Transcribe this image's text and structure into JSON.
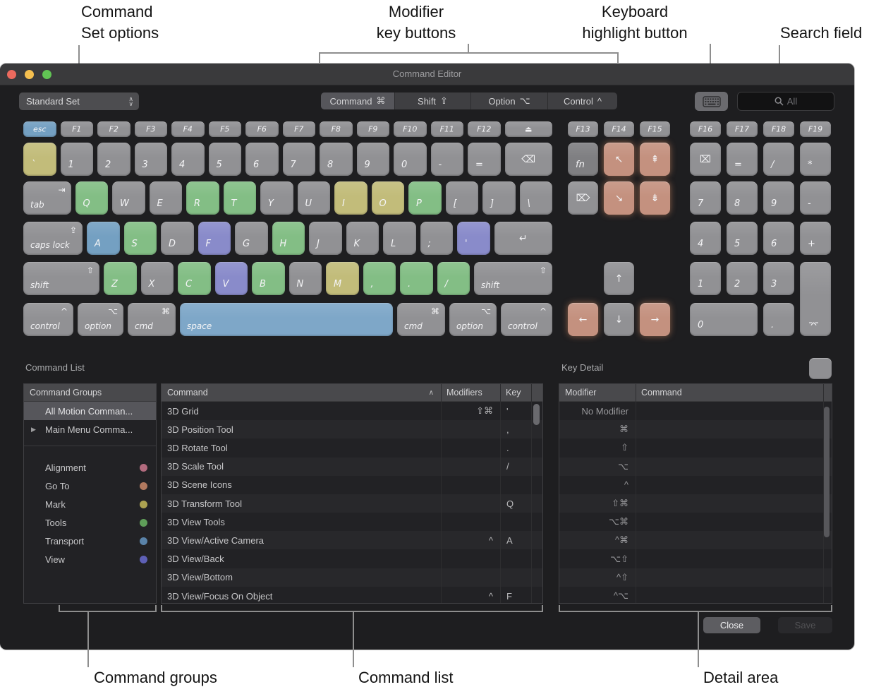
{
  "callouts": {
    "command_set": [
      "Command",
      "Set options"
    ],
    "modifier": [
      "Modifier",
      "key buttons"
    ],
    "keyboard": [
      "Keyboard",
      "highlight button"
    ],
    "search": "Search field",
    "command_groups": "Command groups",
    "command_list": "Command list",
    "detail_area": "Detail area"
  },
  "window": {
    "title": "Command Editor"
  },
  "toolbar": {
    "command_set_value": "Standard Set",
    "modifier_buttons": [
      {
        "label": "Command",
        "symbol": "⌘",
        "selected": true
      },
      {
        "label": "Shift",
        "symbol": "⇧",
        "selected": false
      },
      {
        "label": "Option",
        "symbol": "⌥",
        "selected": false
      },
      {
        "label": "Control",
        "symbol": "^",
        "selected": false
      }
    ],
    "search_placeholder": "All"
  },
  "icons": {
    "popup_chevron_up": "∧",
    "popup_chevron_down": "∨",
    "disclosure": "▶"
  },
  "keyboard": {
    "palette": {
      "g": "#919194",
      "dg": "#7f7f82",
      "b": "#74a0c2",
      "sb": "#7ea7c8",
      "gr": "#83be85",
      "k": "#c2bc7a",
      "p": "#898bca",
      "sa": "#c4917f"
    },
    "symbol_names": {
      "⏏": "eject",
      "⌫": "delete",
      "⌦": "forward-delete",
      "⌧": "clear",
      "↵": "return",
      "⌤": "numpad-enter",
      "↖": "home",
      "⇞": "page-up",
      "↘": "end",
      "⇟": "page-down",
      "↑": "arrow-up",
      "↓": "arrow-down",
      "←": "arrow-left",
      "→": "arrow-right",
      "`": "backtick",
      "=": "equals",
      "/": "slash",
      "*": "asterisk",
      "-": "minus",
      "+": "plus",
      ".": "period",
      ",": "comma",
      ";": "semicolon",
      "'": "quote",
      "[": "left-bracket",
      "]": "right-bracket",
      "\\": "backslash"
    },
    "keys": [
      [
        33,
        82,
        46.5,
        22,
        "b",
        "f",
        "esc"
      ],
      [
        85.5,
        82,
        46.5,
        22,
        "g",
        "f",
        "F1"
      ],
      [
        138,
        82,
        46.5,
        22,
        "g",
        "f",
        "F2"
      ],
      [
        190.5,
        82,
        46.5,
        22,
        "g",
        "f",
        "F3"
      ],
      [
        243,
        82,
        46.5,
        22,
        "g",
        "f",
        "F4"
      ],
      [
        295.5,
        82,
        46.5,
        22,
        "g",
        "f",
        "F5"
      ],
      [
        348,
        82,
        46.5,
        22,
        "g",
        "f",
        "F6"
      ],
      [
        400.5,
        82,
        46.5,
        22,
        "g",
        "f",
        "F7"
      ],
      [
        453,
        82,
        46.5,
        22,
        "g",
        "f",
        "F8"
      ],
      [
        505.5,
        82,
        46.5,
        22,
        "g",
        "f",
        "F9"
      ],
      [
        558,
        82,
        46.5,
        22,
        "g",
        "f",
        "F10"
      ],
      [
        610.5,
        82,
        46.5,
        22,
        "g",
        "f",
        "F11"
      ],
      [
        663,
        82,
        46.5,
        22,
        "g",
        "f",
        "F12"
      ],
      [
        715.5,
        82,
        67.5,
        22,
        "g",
        "f",
        "⏏"
      ],
      [
        805,
        82,
        43,
        22,
        "g",
        "f",
        "F13"
      ],
      [
        856,
        82,
        43,
        22,
        "g",
        "f",
        "F14"
      ],
      [
        907,
        82,
        43,
        22,
        "g",
        "f",
        "F15"
      ],
      [
        978,
        82,
        44,
        22,
        "g",
        "f",
        "F16"
      ],
      [
        1030,
        82,
        44,
        22,
        "g",
        "f",
        "F17"
      ],
      [
        1082,
        82,
        44,
        22,
        "g",
        "f",
        "F18"
      ],
      [
        1134,
        82,
        44,
        22,
        "g",
        "f",
        "F19"
      ],
      [
        33,
        112,
        46.5,
        47,
        "k",
        "m",
        "`"
      ],
      [
        85.5,
        112,
        46.5,
        47,
        "g",
        "m",
        "1"
      ],
      [
        138,
        112,
        46.5,
        47,
        "g",
        "m",
        "2"
      ],
      [
        190.5,
        112,
        46.5,
        47,
        "g",
        "m",
        "3"
      ],
      [
        243,
        112,
        46.5,
        47,
        "g",
        "m",
        "4"
      ],
      [
        295.5,
        112,
        46.5,
        47,
        "g",
        "m",
        "5"
      ],
      [
        348,
        112,
        46.5,
        47,
        "g",
        "m",
        "6"
      ],
      [
        400.5,
        112,
        46.5,
        47,
        "g",
        "m",
        "7"
      ],
      [
        453,
        112,
        46.5,
        47,
        "g",
        "m",
        "8"
      ],
      [
        505.5,
        112,
        46.5,
        47,
        "g",
        "m",
        "9"
      ],
      [
        558,
        112,
        46.5,
        47,
        "g",
        "m",
        "0"
      ],
      [
        610.5,
        112,
        46.5,
        47,
        "g",
        "m",
        "-"
      ],
      [
        663,
        112,
        46.5,
        47,
        "g",
        "m",
        "="
      ],
      [
        715.5,
        112,
        67.5,
        47,
        "g",
        "c",
        "⌫"
      ],
      [
        805,
        112,
        43,
        47,
        "dg",
        "m",
        "fn"
      ],
      [
        856,
        112,
        43,
        47,
        "sa",
        "c",
        "↖"
      ],
      [
        907,
        112,
        43,
        47,
        "sa",
        "c",
        "⇞"
      ],
      [
        978,
        112,
        44,
        47,
        "g",
        "c",
        "⌧"
      ],
      [
        1030,
        112,
        44,
        47,
        "g",
        "m",
        "="
      ],
      [
        1082,
        112,
        44,
        47,
        "g",
        "m",
        "/"
      ],
      [
        1134,
        112,
        44,
        47,
        "g",
        "m",
        "*"
      ],
      [
        33,
        167,
        67.5,
        47,
        "g",
        "w",
        "tab",
        "⇥"
      ],
      [
        106.5,
        167,
        46.5,
        47,
        "gr",
        "m",
        "Q"
      ],
      [
        159,
        167,
        46.5,
        47,
        "g",
        "m",
        "W"
      ],
      [
        211.5,
        167,
        46.5,
        47,
        "g",
        "m",
        "E"
      ],
      [
        264,
        167,
        46.5,
        47,
        "gr",
        "m",
        "R"
      ],
      [
        316.5,
        167,
        46.5,
        47,
        "gr",
        "m",
        "T"
      ],
      [
        369,
        167,
        46.5,
        47,
        "g",
        "m",
        "Y"
      ],
      [
        421.5,
        167,
        46.5,
        47,
        "g",
        "m",
        "U"
      ],
      [
        474,
        167,
        46.5,
        47,
        "k",
        "m",
        "I"
      ],
      [
        526.5,
        167,
        46.5,
        47,
        "k",
        "m",
        "O"
      ],
      [
        579,
        167,
        46.5,
        47,
        "gr",
        "m",
        "P"
      ],
      [
        631.5,
        167,
        46.5,
        47,
        "g",
        "m",
        "["
      ],
      [
        684,
        167,
        46.5,
        47,
        "g",
        "m",
        "]"
      ],
      [
        736.5,
        167,
        46.5,
        47,
        "g",
        "m",
        "\\"
      ],
      [
        805,
        167,
        43,
        47,
        "g",
        "c",
        "⌦"
      ],
      [
        856,
        167,
        43,
        47,
        "sa",
        "c",
        "↘"
      ],
      [
        907,
        167,
        43,
        47,
        "sa",
        "c",
        "⇟"
      ],
      [
        978,
        167,
        44,
        47,
        "g",
        "m",
        "7"
      ],
      [
        1030,
        167,
        44,
        47,
        "g",
        "m",
        "8"
      ],
      [
        1082,
        167,
        44,
        47,
        "g",
        "m",
        "9"
      ],
      [
        1134,
        167,
        44,
        47,
        "g",
        "m",
        "-"
      ],
      [
        33,
        224,
        84,
        47,
        "g",
        "w",
        "caps lock",
        "⇪"
      ],
      [
        123,
        224,
        46.5,
        47,
        "b",
        "m",
        "A"
      ],
      [
        175.5,
        224,
        46.5,
        47,
        "gr",
        "m",
        "S"
      ],
      [
        228,
        224,
        46.5,
        47,
        "g",
        "m",
        "D"
      ],
      [
        280.5,
        224,
        46.5,
        47,
        "p",
        "m",
        "F"
      ],
      [
        333,
        224,
        46.5,
        47,
        "g",
        "m",
        "G"
      ],
      [
        385.5,
        224,
        46.5,
        47,
        "gr",
        "m",
        "H"
      ],
      [
        438,
        224,
        46.5,
        47,
        "g",
        "m",
        "J"
      ],
      [
        490.5,
        224,
        46.5,
        47,
        "g",
        "m",
        "K"
      ],
      [
        543,
        224,
        46.5,
        47,
        "g",
        "m",
        "L"
      ],
      [
        595.5,
        224,
        46.5,
        47,
        "g",
        "m",
        ";"
      ],
      [
        648,
        224,
        46.5,
        47,
        "p",
        "m",
        "'"
      ],
      [
        700.5,
        224,
        82.5,
        47,
        "g",
        "c",
        "↵"
      ],
      [
        978,
        224,
        44,
        47,
        "g",
        "m",
        "4"
      ],
      [
        1030,
        224,
        44,
        47,
        "g",
        "m",
        "5"
      ],
      [
        1082,
        224,
        44,
        47,
        "g",
        "m",
        "6"
      ],
      [
        1134,
        224,
        44,
        47,
        "g",
        "m",
        "+"
      ],
      [
        33,
        281,
        108,
        47,
        "g",
        "w",
        "shift",
        "⇧"
      ],
      [
        147,
        281,
        46.5,
        47,
        "gr",
        "m",
        "Z"
      ],
      [
        199.5,
        281,
        46.5,
        47,
        "g",
        "m",
        "X"
      ],
      [
        252,
        281,
        46.5,
        47,
        "gr",
        "m",
        "C"
      ],
      [
        304.5,
        281,
        46.5,
        47,
        "p",
        "m",
        "V"
      ],
      [
        357,
        281,
        46.5,
        47,
        "gr",
        "m",
        "B"
      ],
      [
        409.5,
        281,
        46.5,
        47,
        "g",
        "m",
        "N"
      ],
      [
        462,
        281,
        46.5,
        47,
        "k",
        "m",
        "M"
      ],
      [
        514.5,
        281,
        46.5,
        47,
        "gr",
        "m",
        ","
      ],
      [
        567,
        281,
        46.5,
        47,
        "gr",
        "m",
        "."
      ],
      [
        619.5,
        281,
        46.5,
        47,
        "gr",
        "m",
        "/"
      ],
      [
        672,
        281,
        111,
        47,
        "g",
        "w",
        "shift",
        "⇧"
      ],
      [
        856,
        281,
        43,
        47,
        "g",
        "c",
        "↑"
      ],
      [
        978,
        281,
        44,
        47,
        "g",
        "m",
        "1"
      ],
      [
        1030,
        281,
        44,
        47,
        "g",
        "m",
        "2"
      ],
      [
        1082,
        281,
        44,
        47,
        "g",
        "m",
        "3"
      ],
      [
        1134,
        281,
        44,
        105,
        "g",
        "e",
        "⌤"
      ],
      [
        33,
        339,
        71,
        47,
        "g",
        "w",
        "control",
        "^"
      ],
      [
        110,
        339,
        65,
        47,
        "g",
        "w",
        "option",
        "⌥"
      ],
      [
        181,
        339,
        68,
        47,
        "g",
        "w",
        "cmd",
        "⌘"
      ],
      [
        255,
        339,
        302,
        47,
        "sb",
        "w",
        "space"
      ],
      [
        563,
        339,
        68,
        47,
        "g",
        "w",
        "cmd",
        "⌘"
      ],
      [
        637,
        339,
        67,
        47,
        "g",
        "w",
        "option",
        "⌥"
      ],
      [
        710,
        339,
        73,
        47,
        "g",
        "w",
        "control",
        "^"
      ],
      [
        805,
        339,
        43,
        47,
        "sa",
        "c",
        "←"
      ],
      [
        856,
        339,
        43,
        47,
        "g",
        "c",
        "↓"
      ],
      [
        907,
        339,
        43,
        47,
        "sa",
        "c",
        "→"
      ],
      [
        978,
        339,
        96,
        47,
        "g",
        "m",
        "0"
      ],
      [
        1082,
        339,
        44,
        47,
        "g",
        "m",
        "."
      ]
    ]
  },
  "command_list": {
    "title": "Command List",
    "groups_header": "Command Groups",
    "groups": [
      {
        "label": "All Motion Comman...",
        "selected": true
      },
      {
        "label": "Main Menu Comma...",
        "disclosure": true
      },
      {
        "separator": true
      },
      {
        "label": "Alignment",
        "dot": "#b26b7e"
      },
      {
        "label": "Go To",
        "dot": "#b1795f"
      },
      {
        "label": "Mark",
        "dot": "#aca251"
      },
      {
        "label": "Tools",
        "dot": "#5f9e59"
      },
      {
        "label": "Transport",
        "dot": "#5a83a9"
      },
      {
        "label": "View",
        "dot": "#5e60b6"
      }
    ],
    "columns": [
      "Command",
      "Modifiers",
      "Key"
    ],
    "sort_indicator": "∧",
    "rows": [
      [
        "3D Grid",
        "⇧⌘",
        "'"
      ],
      [
        "3D Position Tool",
        "",
        ","
      ],
      [
        "3D Rotate Tool",
        "",
        "."
      ],
      [
        "3D Scale Tool",
        "",
        "/"
      ],
      [
        "3D Scene Icons",
        "",
        ""
      ],
      [
        "3D Transform Tool",
        "",
        "Q"
      ],
      [
        "3D View Tools",
        "",
        ""
      ],
      [
        "3D View/Active Camera",
        "^",
        "A"
      ],
      [
        "3D View/Back",
        "",
        ""
      ],
      [
        "3D View/Bottom",
        "",
        ""
      ],
      [
        "3D View/Focus On Object",
        "^",
        "F"
      ]
    ]
  },
  "key_detail": {
    "title": "Key Detail",
    "columns": [
      "Modifier",
      "Command"
    ],
    "modifiers": [
      "No Modifier",
      "⌘",
      "⇧",
      "⌥",
      "^",
      "⇧⌘",
      "⌥⌘",
      "^⌘",
      "⌥⇧",
      "^⇧",
      "^⌥"
    ]
  },
  "footer": {
    "close": "Close",
    "save": "Save"
  }
}
